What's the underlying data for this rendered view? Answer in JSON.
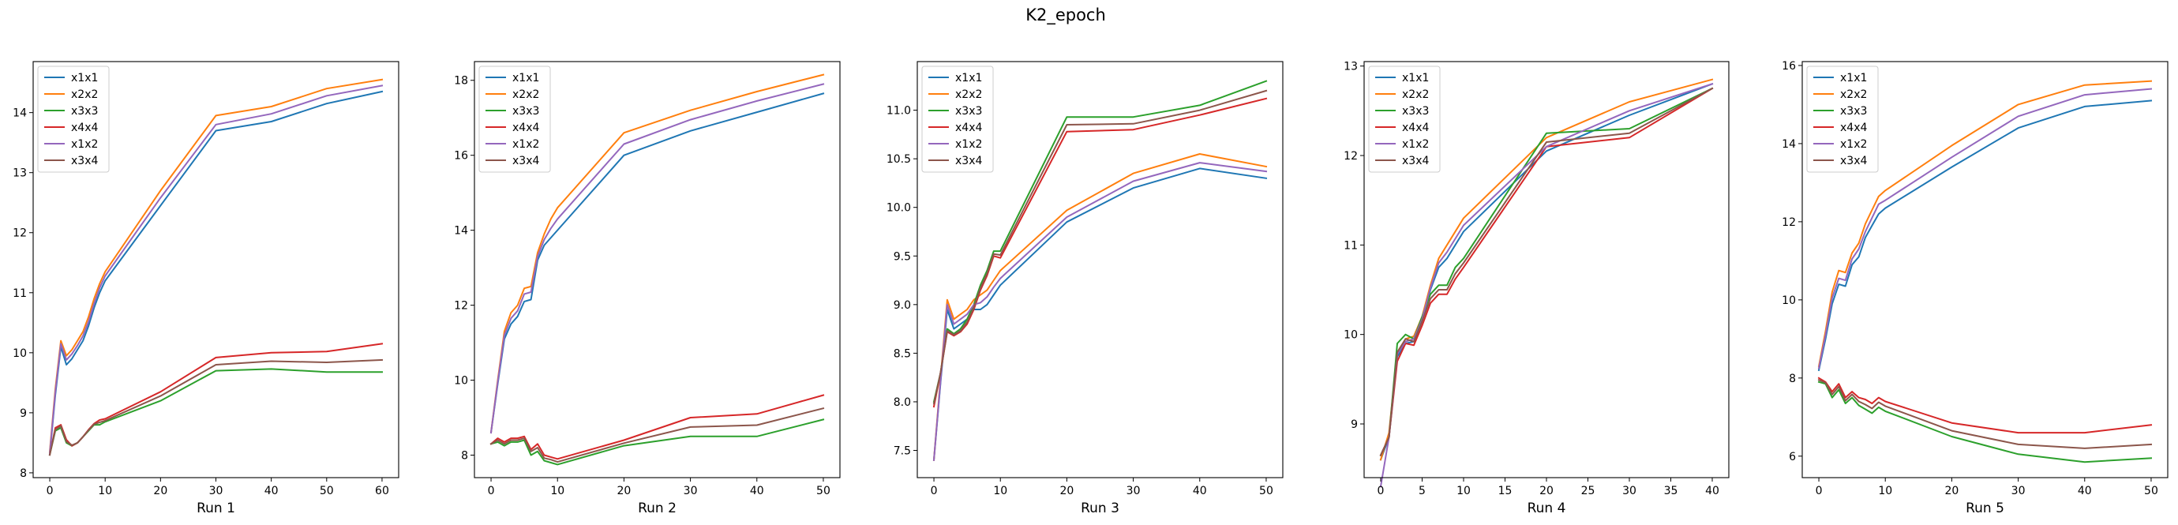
{
  "figure": {
    "title": "K2_epoch"
  },
  "chart_data": [
    {
      "type": "line",
      "xlabel": "Run 1",
      "xlim": [
        -3,
        63
      ],
      "ylim": [
        7.92,
        14.85
      ],
      "xticks": [
        0,
        10,
        20,
        30,
        40,
        50,
        60
      ],
      "yticks": [
        8,
        9,
        10,
        11,
        12,
        13,
        14
      ],
      "legend_loc": "upper left",
      "x": [
        0,
        1,
        2,
        3,
        4,
        5,
        6,
        7,
        8,
        9,
        10,
        20,
        30,
        40,
        50,
        60
      ],
      "series": [
        {
          "name": "x1x1",
          "color": "#1f77b4",
          "values": [
            8.3,
            9.3,
            10.1,
            9.8,
            9.9,
            10.05,
            10.2,
            10.45,
            10.75,
            11.0,
            11.2,
            12.45,
            13.7,
            13.85,
            14.15,
            14.35
          ]
        },
        {
          "name": "x2x2",
          "color": "#ff7f0e",
          "values": [
            8.35,
            9.4,
            10.2,
            9.95,
            10.05,
            10.2,
            10.35,
            10.6,
            10.9,
            11.15,
            11.35,
            12.7,
            13.95,
            14.1,
            14.4,
            14.55
          ]
        },
        {
          "name": "x3x3",
          "color": "#2ca02c",
          "values": [
            8.3,
            8.7,
            8.75,
            8.5,
            8.45,
            8.5,
            8.6,
            8.7,
            8.8,
            8.8,
            8.85,
            9.2,
            9.7,
            9.73,
            9.68,
            9.68
          ]
        },
        {
          "name": "x4x4",
          "color": "#d62728",
          "values": [
            8.3,
            8.75,
            8.8,
            8.55,
            8.45,
            8.5,
            8.6,
            8.72,
            8.82,
            8.88,
            8.9,
            9.35,
            9.92,
            10.0,
            10.02,
            10.15
          ]
        },
        {
          "name": "x1x2",
          "color": "#9467bd",
          "values": [
            8.32,
            9.35,
            10.15,
            9.88,
            9.98,
            10.12,
            10.28,
            10.52,
            10.82,
            11.08,
            11.28,
            12.58,
            13.8,
            13.98,
            14.28,
            14.45
          ]
        },
        {
          "name": "x3x4",
          "color": "#8c564b",
          "values": [
            8.3,
            8.72,
            8.78,
            8.52,
            8.46,
            8.5,
            8.6,
            8.71,
            8.81,
            8.84,
            8.87,
            9.28,
            9.8,
            9.86,
            9.84,
            9.88
          ]
        }
      ]
    },
    {
      "type": "line",
      "xlabel": "Run 2",
      "xlim": [
        -2.5,
        52.5
      ],
      "ylim": [
        7.4,
        18.5
      ],
      "xticks": [
        0,
        10,
        20,
        30,
        40,
        50
      ],
      "yticks": [
        8,
        10,
        12,
        14,
        16,
        18
      ],
      "legend_loc": "upper left",
      "x": [
        0,
        1,
        2,
        3,
        4,
        5,
        6,
        7,
        8,
        9,
        10,
        20,
        30,
        40,
        50
      ],
      "series": [
        {
          "name": "x1x1",
          "color": "#1f77b4",
          "values": [
            8.6,
            9.9,
            11.1,
            11.5,
            11.7,
            12.1,
            12.15,
            13.2,
            13.6,
            13.8,
            14.0,
            16.0,
            16.65,
            17.15,
            17.65
          ]
        },
        {
          "name": "x2x2",
          "color": "#ff7f0e",
          "values": [
            8.6,
            10.0,
            11.3,
            11.8,
            12.0,
            12.45,
            12.5,
            13.4,
            13.9,
            14.3,
            14.6,
            16.6,
            17.2,
            17.7,
            18.15
          ]
        },
        {
          "name": "x3x3",
          "color": "#2ca02c",
          "values": [
            8.3,
            8.35,
            8.25,
            8.35,
            8.35,
            8.4,
            8.0,
            8.1,
            7.85,
            7.8,
            7.75,
            8.25,
            8.5,
            8.5,
            8.95
          ]
        },
        {
          "name": "x4x4",
          "color": "#d62728",
          "values": [
            8.3,
            8.45,
            8.35,
            8.45,
            8.45,
            8.5,
            8.15,
            8.3,
            8.0,
            7.95,
            7.9,
            8.4,
            9.0,
            9.1,
            9.6
          ]
        },
        {
          "name": "x1x2",
          "color": "#9467bd",
          "values": [
            8.6,
            9.95,
            11.2,
            11.65,
            11.85,
            12.3,
            12.35,
            13.3,
            13.75,
            14.05,
            14.3,
            16.3,
            16.95,
            17.45,
            17.9
          ]
        },
        {
          "name": "x3x4",
          "color": "#8c564b",
          "values": [
            8.3,
            8.4,
            8.3,
            8.4,
            8.4,
            8.45,
            8.1,
            8.2,
            7.92,
            7.88,
            7.82,
            8.32,
            8.75,
            8.8,
            9.25
          ]
        }
      ]
    },
    {
      "type": "line",
      "xlabel": "Run 3",
      "xlim": [
        -2.5,
        52.5
      ],
      "ylim": [
        7.22,
        11.5
      ],
      "xticks": [
        0,
        10,
        20,
        30,
        40,
        50
      ],
      "yticks": [
        7.5,
        8.0,
        8.5,
        9.0,
        9.5,
        10.0,
        10.5,
        11.0
      ],
      "legend_loc": "upper left",
      "x": [
        0,
        1,
        2,
        3,
        4,
        5,
        6,
        7,
        8,
        9,
        10,
        20,
        30,
        40,
        50
      ],
      "series": [
        {
          "name": "x1x1",
          "color": "#1f77b4",
          "values": [
            7.4,
            8.2,
            8.95,
            8.75,
            8.8,
            8.85,
            8.95,
            8.95,
            9.0,
            9.1,
            9.2,
            9.85,
            10.2,
            10.4,
            10.3
          ]
        },
        {
          "name": "x2x2",
          "color": "#ff7f0e",
          "values": [
            7.4,
            8.25,
            9.05,
            8.85,
            8.9,
            8.95,
            9.05,
            9.1,
            9.15,
            9.25,
            9.35,
            9.97,
            10.35,
            10.55,
            10.42
          ]
        },
        {
          "name": "x3x3",
          "color": "#2ca02c",
          "values": [
            8.0,
            8.3,
            8.75,
            8.7,
            8.75,
            8.85,
            9.0,
            9.2,
            9.35,
            9.55,
            9.55,
            10.93,
            10.93,
            11.05,
            11.3
          ]
        },
        {
          "name": "x4x4",
          "color": "#d62728",
          "values": [
            7.95,
            8.3,
            8.72,
            8.68,
            8.72,
            8.8,
            8.95,
            9.15,
            9.3,
            9.5,
            9.48,
            10.78,
            10.8,
            10.95,
            11.12
          ]
        },
        {
          "name": "x1x2",
          "color": "#9467bd",
          "values": [
            7.4,
            8.22,
            9.0,
            8.8,
            8.85,
            8.9,
            9.0,
            9.02,
            9.08,
            9.18,
            9.27,
            9.9,
            10.27,
            10.46,
            10.37
          ]
        },
        {
          "name": "x3x4",
          "color": "#8c564b",
          "values": [
            7.98,
            8.3,
            8.73,
            8.69,
            8.73,
            8.82,
            8.97,
            9.17,
            9.32,
            9.52,
            9.51,
            10.85,
            10.86,
            11.0,
            11.2
          ]
        }
      ]
    },
    {
      "type": "line",
      "xlabel": "Run 4",
      "xlim": [
        -2,
        42
      ],
      "ylim": [
        8.4,
        13.05
      ],
      "xticks": [
        0,
        5,
        10,
        15,
        20,
        25,
        30,
        35,
        40
      ],
      "yticks": [
        9,
        10,
        11,
        12,
        13
      ],
      "legend_loc": "upper left",
      "x": [
        0,
        1,
        2,
        3,
        4,
        5,
        6,
        7,
        8,
        9,
        10,
        20,
        30,
        40
      ],
      "series": [
        {
          "name": "x1x1",
          "color": "#1f77b4",
          "values": [
            8.6,
            8.85,
            9.75,
            9.9,
            9.92,
            10.15,
            10.5,
            10.75,
            10.85,
            11.0,
            11.15,
            12.05,
            12.45,
            12.8
          ]
        },
        {
          "name": "x2x2",
          "color": "#ff7f0e",
          "values": [
            8.6,
            8.9,
            9.8,
            9.95,
            9.98,
            10.2,
            10.55,
            10.85,
            11.0,
            11.15,
            11.3,
            12.2,
            12.6,
            12.85
          ]
        },
        {
          "name": "x3x3",
          "color": "#2ca02c",
          "values": [
            8.65,
            8.85,
            9.9,
            10.0,
            9.95,
            10.2,
            10.45,
            10.55,
            10.55,
            10.75,
            10.85,
            12.25,
            12.3,
            12.75
          ]
        },
        {
          "name": "x4x4",
          "color": "#d62728",
          "values": [
            8.65,
            8.85,
            9.7,
            9.9,
            9.88,
            10.1,
            10.35,
            10.45,
            10.45,
            10.62,
            10.75,
            12.1,
            12.2,
            12.75
          ]
        },
        {
          "name": "x1x2",
          "color": "#9467bd",
          "values": [
            8.3,
            8.85,
            9.78,
            9.92,
            9.95,
            10.17,
            10.52,
            10.8,
            10.92,
            11.07,
            11.22,
            12.1,
            12.5,
            12.8
          ]
        },
        {
          "name": "x3x4",
          "color": "#8c564b",
          "values": [
            8.65,
            8.85,
            9.8,
            9.95,
            9.92,
            10.15,
            10.4,
            10.5,
            10.5,
            10.68,
            10.8,
            12.15,
            12.25,
            12.75
          ]
        }
      ]
    },
    {
      "type": "line",
      "xlabel": "Run 5",
      "xlim": [
        -2.5,
        52.5
      ],
      "ylim": [
        5.45,
        16.1
      ],
      "xticks": [
        0,
        10,
        20,
        30,
        40,
        50
      ],
      "yticks": [
        6,
        8,
        10,
        12,
        14,
        16
      ],
      "legend_loc": "upper left",
      "x": [
        0,
        1,
        2,
        3,
        4,
        5,
        6,
        7,
        8,
        9,
        10,
        20,
        30,
        40,
        50
      ],
      "series": [
        {
          "name": "x1x1",
          "color": "#1f77b4",
          "values": [
            8.2,
            9.0,
            9.9,
            10.4,
            10.35,
            10.9,
            11.1,
            11.6,
            11.9,
            12.2,
            12.35,
            13.4,
            14.4,
            14.95,
            15.1
          ]
        },
        {
          "name": "x2x2",
          "color": "#ff7f0e",
          "values": [
            8.3,
            9.2,
            10.2,
            10.75,
            10.7,
            11.2,
            11.45,
            11.95,
            12.3,
            12.65,
            12.8,
            13.95,
            15.0,
            15.5,
            15.6
          ]
        },
        {
          "name": "x3x3",
          "color": "#2ca02c",
          "values": [
            7.9,
            7.85,
            7.5,
            7.7,
            7.35,
            7.5,
            7.3,
            7.2,
            7.1,
            7.25,
            7.15,
            6.5,
            6.05,
            5.85,
            5.95
          ]
        },
        {
          "name": "x4x4",
          "color": "#d62728",
          "values": [
            8.0,
            7.9,
            7.65,
            7.85,
            7.5,
            7.65,
            7.5,
            7.45,
            7.35,
            7.5,
            7.4,
            6.85,
            6.6,
            6.6,
            6.8
          ]
        },
        {
          "name": "x1x2",
          "color": "#9467bd",
          "values": [
            8.25,
            9.1,
            10.05,
            10.55,
            10.5,
            11.05,
            11.3,
            11.75,
            12.1,
            12.45,
            12.55,
            13.65,
            14.7,
            15.25,
            15.4
          ]
        },
        {
          "name": "x3x4",
          "color": "#8c564b",
          "values": [
            7.95,
            7.88,
            7.58,
            7.78,
            7.42,
            7.58,
            7.4,
            7.32,
            7.22,
            7.38,
            7.28,
            6.65,
            6.3,
            6.2,
            6.3
          ]
        }
      ]
    }
  ]
}
